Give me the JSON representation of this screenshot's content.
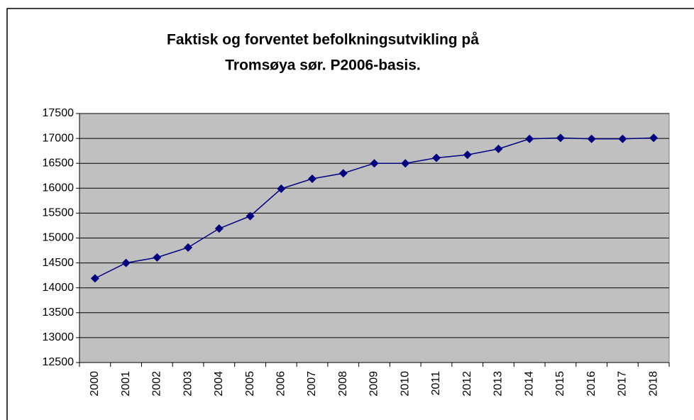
{
  "chart_data": {
    "type": "line",
    "title": [
      "Faktisk og forventet befolkningsutvikling på",
      "Tromsøya sør. P2006-basis."
    ],
    "categories": [
      "2000",
      "2001",
      "2002",
      "2003",
      "2004",
      "2005",
      "2006",
      "2007",
      "2008",
      "2009",
      "2010",
      "2011",
      "2012",
      "2013",
      "2014",
      "2015",
      "2016",
      "2017",
      "2018"
    ],
    "values": [
      14190,
      14500,
      14610,
      14810,
      15190,
      15440,
      15990,
      16190,
      16300,
      16500,
      16500,
      16610,
      16670,
      16790,
      16990,
      17010,
      16990,
      16990,
      17010
    ],
    "color": "#000080",
    "ylim": [
      12500,
      17500
    ],
    "yticks": [
      12500,
      13000,
      13500,
      14000,
      14500,
      15000,
      15500,
      16000,
      16500,
      17000,
      17500
    ],
    "grid": true
  }
}
